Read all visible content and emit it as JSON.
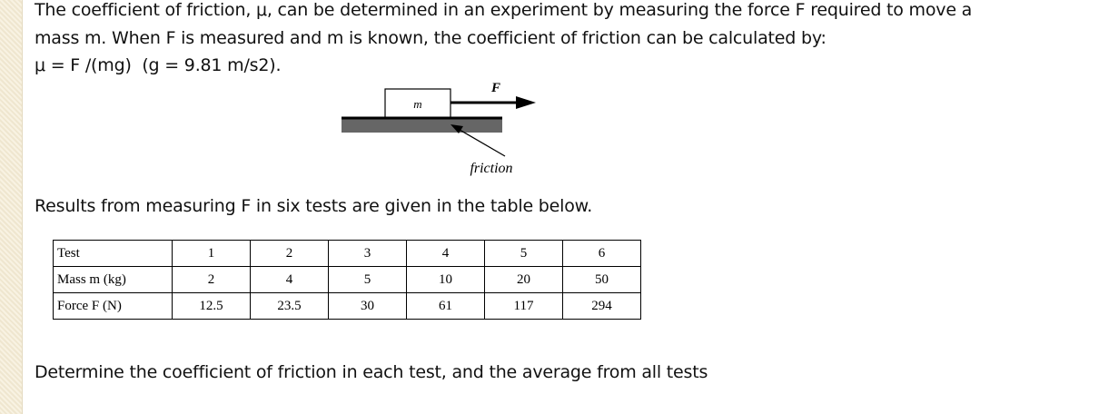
{
  "intro": {
    "lines": [
      "The coefficient of friction, μ, can be determined in an experiment by measuring the force F required to move a",
      "mass m. When F is measured and m is known, the coefficient of friction can be calculated by:",
      "μ = F /(mg)  (g = 9.81 m/s2)."
    ]
  },
  "diagram": {
    "mass_label": "m",
    "force_label": "F",
    "friction_label": "friction"
  },
  "results_text": "Results from measuring F in six tests are given in the table below.",
  "table": {
    "rows": [
      [
        "Test",
        "1",
        "2",
        "3",
        "4",
        "5",
        "6"
      ],
      [
        "Mass m (kg)",
        "2",
        "4",
        "5",
        "10",
        "20",
        "50"
      ],
      [
        "Force F (N)",
        "12.5",
        "23.5",
        "30",
        "61",
        "117",
        "294"
      ]
    ]
  },
  "question": "Determine the coefficient of friction in each test, and the average from all tests"
}
